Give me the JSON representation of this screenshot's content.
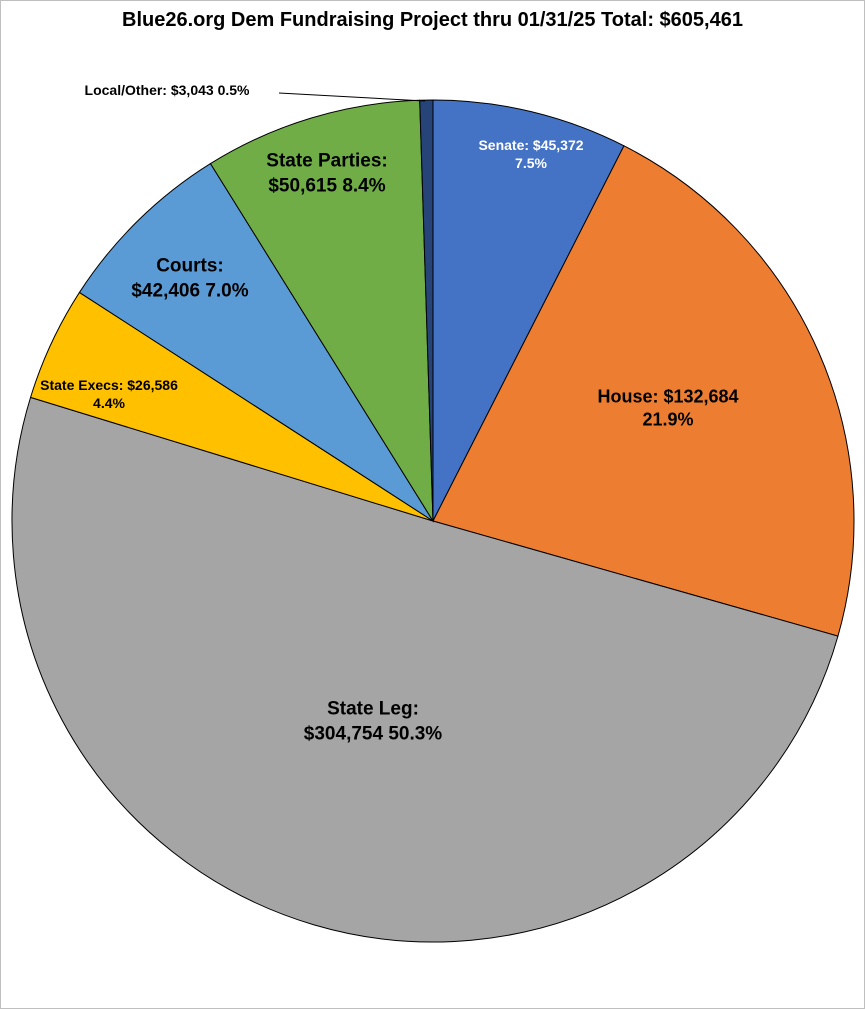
{
  "chart_data": {
    "type": "pie",
    "title": "Blue26.org Dem Fundraising Project thru 01/31/25 Total: $605,461",
    "start": "top",
    "direction": "clockwise",
    "slices": [
      {
        "name": "Senate",
        "value": 45372,
        "percent": 7.5,
        "color": "#4472C4",
        "line1": "Senate: $45,372",
        "line2": "7.5%"
      },
      {
        "name": "House",
        "value": 132684,
        "percent": 21.9,
        "color": "#ED7D31",
        "line1": "House: $132,684",
        "line2": "21.9%"
      },
      {
        "name": "State Leg",
        "value": 304754,
        "percent": 50.3,
        "color": "#A5A5A5",
        "line1": "State Leg:",
        "line2": "$304,754 50.3%"
      },
      {
        "name": "State Execs",
        "value": 26586,
        "percent": 4.4,
        "color": "#FFC000",
        "line1": "State Execs: $26,586",
        "line2": "4.4%"
      },
      {
        "name": "Courts",
        "value": 42406,
        "percent": 7.0,
        "color": "#5B9BD5",
        "line1": "Courts:",
        "line2": "$42,406 7.0%"
      },
      {
        "name": "State Parties",
        "value": 50615,
        "percent": 8.4,
        "color": "#70AD47",
        "line1": "State Parties:",
        "line2": "$50,615 8.4%"
      },
      {
        "name": "Local/Other",
        "value": 3043,
        "percent": 0.5,
        "color": "#264478",
        "line1": "Local/Other: $3,043 0.5%",
        "line2": ""
      }
    ]
  }
}
